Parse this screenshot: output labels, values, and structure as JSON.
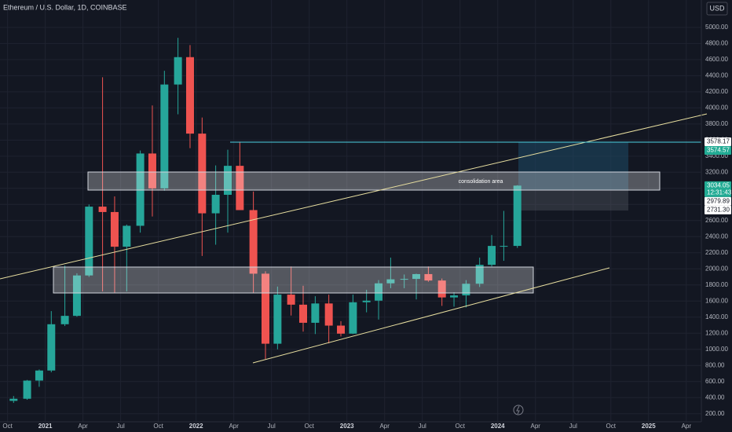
{
  "chart_data": {
    "type": "candlestick",
    "title": "Ethereum / U.S. Dollar, 1D, COINBASE",
    "currency": "USD",
    "annotation": "consolidation area",
    "x": [
      2020.79,
      2020.88,
      2020.96,
      2021.04,
      2021.13,
      2021.21,
      2021.29,
      2021.38,
      2021.46,
      2021.54,
      2021.63,
      2021.71,
      2021.79,
      2021.88,
      2021.96,
      2022.04,
      2022.13,
      2022.21,
      2022.29,
      2022.38,
      2022.46,
      2022.54,
      2022.63,
      2022.71,
      2022.79,
      2022.88,
      2022.96,
      2023.04,
      2023.13,
      2023.21,
      2023.29,
      2023.38,
      2023.46,
      2023.54,
      2023.63,
      2023.71,
      2023.79,
      2023.88,
      2023.96,
      2024.04,
      2024.13
    ],
    "open": [
      360,
      386,
      612,
      737,
      1312,
      1416,
      1918,
      2773,
      2706,
      2275,
      2535,
      3433,
      3000,
      4290,
      4630,
      3680,
      2690,
      2920,
      3280,
      2730,
      1940,
      1070,
      1680,
      1555,
      1330,
      1570,
      1295,
      1195,
      1585,
      1605,
      1820,
      1870,
      1875,
      1935,
      1855,
      1645,
      1670,
      1815,
      2050,
      2285,
      2285
    ],
    "high": [
      420,
      620,
      750,
      1475,
      2040,
      1945,
      2800,
      4380,
      2900,
      2550,
      3470,
      4030,
      4460,
      4870,
      4780,
      3880,
      3285,
      3480,
      3580,
      2960,
      1970,
      1780,
      2030,
      1790,
      1660,
      1680,
      1350,
      1680,
      1740,
      1860,
      2140,
      1930,
      1940,
      2030,
      1880,
      1710,
      1860,
      2140,
      2420,
      2720,
      3040
    ],
    "low": [
      335,
      373,
      535,
      715,
      1290,
      1405,
      1900,
      1720,
      1700,
      1720,
      2450,
      2650,
      2970,
      3920,
      3500,
      2160,
      2300,
      2450,
      2780,
      1700,
      880,
      1000,
      1420,
      1220,
      1190,
      1075,
      1160,
      1190,
      1460,
      1370,
      1760,
      1760,
      1620,
      1840,
      1540,
      1530,
      1520,
      1775,
      2030,
      2100,
      2260
    ],
    "close": [
      386,
      612,
      737,
      1312,
      1416,
      1918,
      2773,
      2706,
      2275,
      2535,
      3433,
      3000,
      4290,
      4630,
      3680,
      2690,
      2920,
      3280,
      2730,
      1940,
      1070,
      1680,
      1555,
      1330,
      1570,
      1295,
      1195,
      1585,
      1605,
      1820,
      1870,
      1875,
      1935,
      1855,
      1645,
      1670,
      1815,
      2050,
      2285,
      2285,
      3034.05
    ],
    "up_color": "#26a69a",
    "down_color": "#ef5350",
    "xlim": [
      2020.7,
      2025.35
    ],
    "ylim": [
      100,
      5340
    ],
    "xticks": [
      {
        "value": 2020.75,
        "label": "Oct"
      },
      {
        "value": 2021,
        "label": "2021"
      },
      {
        "value": 2021.25,
        "label": "Apr"
      },
      {
        "value": 2021.5,
        "label": "Jul"
      },
      {
        "value": 2021.75,
        "label": "Oct"
      },
      {
        "value": 2022,
        "label": "2022"
      },
      {
        "value": 2022.25,
        "label": "Apr"
      },
      {
        "value": 2022.5,
        "label": "Jul"
      },
      {
        "value": 2022.75,
        "label": "Oct"
      },
      {
        "value": 2023,
        "label": "2023"
      },
      {
        "value": 2023.25,
        "label": "Apr"
      },
      {
        "value": 2023.5,
        "label": "Jul"
      },
      {
        "value": 2023.75,
        "label": "Oct"
      },
      {
        "value": 2024,
        "label": "2024"
      },
      {
        "value": 2024.25,
        "label": "Apr"
      },
      {
        "value": 2024.5,
        "label": "Jul"
      },
      {
        "value": 2024.75,
        "label": "Oct"
      },
      {
        "value": 2025,
        "label": "2025"
      },
      {
        "value": 2025.25,
        "label": "Apr"
      }
    ],
    "yticks": [
      {
        "value": 200,
        "label": "200.00"
      },
      {
        "value": 400,
        "label": "400.00"
      },
      {
        "value": 600,
        "label": "600.00"
      },
      {
        "value": 800,
        "label": "800.00"
      },
      {
        "value": 1000,
        "label": "1000.00"
      },
      {
        "value": 1200,
        "label": "1200.00"
      },
      {
        "value": 1400,
        "label": "1400.00"
      },
      {
        "value": 1600,
        "label": "1600.00"
      },
      {
        "value": 1800,
        "label": "1800.00"
      },
      {
        "value": 2000,
        "label": "2000.00"
      },
      {
        "value": 2200,
        "label": "2200.00"
      },
      {
        "value": 2400,
        "label": "2400.00"
      },
      {
        "value": 2600,
        "label": "2600.00"
      },
      {
        "value": 2800,
        "label": "2800.00"
      },
      {
        "value": 3000,
        "label": "3000.00"
      },
      {
        "value": 3200,
        "label": "3200.00"
      },
      {
        "value": 3400,
        "label": "3400.00"
      },
      {
        "value": 3600,
        "label": "3600.00"
      },
      {
        "value": 3800,
        "label": "3800.00"
      },
      {
        "value": 4000,
        "label": "4000.00"
      },
      {
        "value": 4200,
        "label": "4200.00"
      },
      {
        "value": 4400,
        "label": "4400.00"
      },
      {
        "value": 4600,
        "label": "4600.00"
      },
      {
        "value": 4800,
        "label": "4800.00"
      },
      {
        "value": 5000,
        "label": "5000.00"
      }
    ],
    "grid": true,
    "price_labels": [
      {
        "value": 3578.17,
        "label": "3578.17",
        "color": "#ffffff"
      },
      {
        "value": 3574.57,
        "label": "3574.57",
        "color": "#22ab94"
      },
      {
        "value": 3034.05,
        "label": "3034.05",
        "sublabel": "12:31:43",
        "color": "#22ab94"
      },
      {
        "value": 2979.89,
        "label": "2979.89",
        "color": "#ffffff"
      },
      {
        "value": 2731.3,
        "label": "2731.30",
        "color": "#ffffff"
      }
    ]
  }
}
